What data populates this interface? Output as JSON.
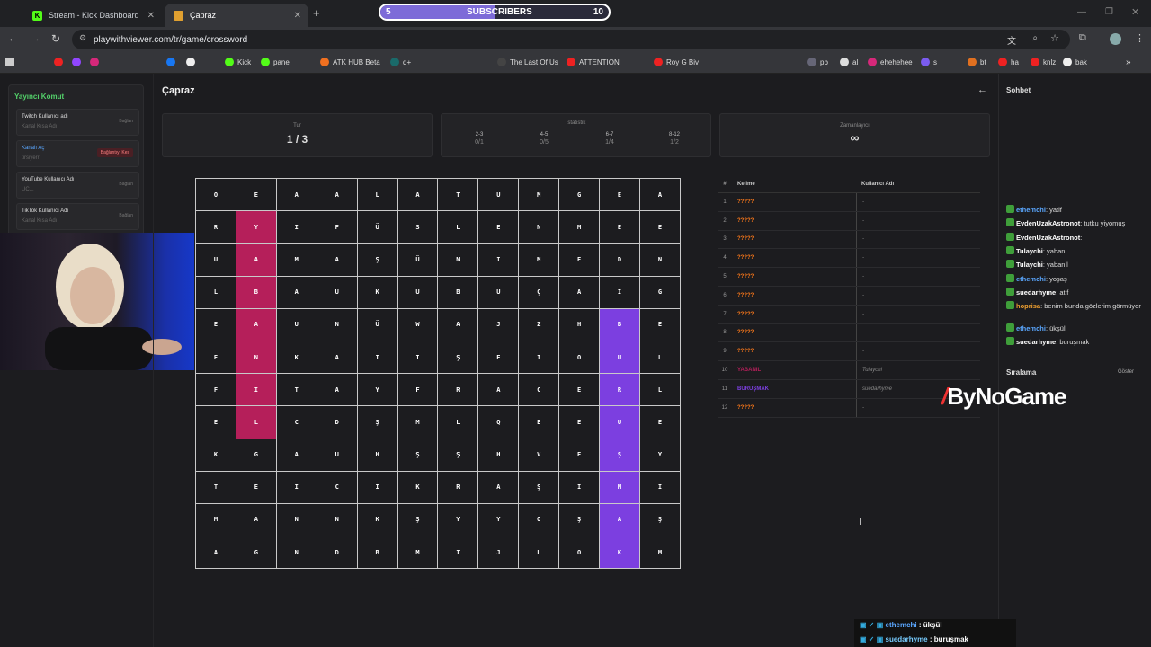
{
  "browser": {
    "tabs": [
      {
        "label": "Stream - Kick Dashboard",
        "active": false
      },
      {
        "label": "Çapraz",
        "active": true
      }
    ],
    "url": "playwithviewer.com/tr/game/crossword",
    "bookmarks": [
      "Kick",
      "panel",
      "ATK HUB Beta",
      "d+",
      "The Last Of Us",
      "ATTENTION",
      "Roy G Biv",
      "al",
      "pb",
      "ehehehee",
      "s",
      "bt",
      "ha",
      "knlz",
      "bak"
    ]
  },
  "subscribers": {
    "label": "SUBSCRIBERS",
    "current": "5",
    "goal": "10",
    "progress": 0.5
  },
  "left_panel": {
    "title": "Yayıncı Komut",
    "cards": [
      {
        "title": "Twitch Kullanıcı adı",
        "placeholder": "Kanal Kısa Adı",
        "button": "Bağlan"
      },
      {
        "title": "Kanalı Aç",
        "placeholder": "tirsiyerr",
        "button": "Bağlantıyı Kes"
      },
      {
        "title": "YouTube Kullanıcı Adı",
        "placeholder": "UC...",
        "button": "Bağlan"
      },
      {
        "title": "TikTok Kullanıcı Adı",
        "placeholder": "Kanal Kısa Adı",
        "button": "Bağlan"
      }
    ]
  },
  "main": {
    "title": "Çapraz",
    "round": {
      "label": "Tur",
      "value": "1 / 3"
    },
    "stats": {
      "label": "İstatistik",
      "ranges": [
        {
          "r": "2-3",
          "v": "0/1"
        },
        {
          "r": "4-5",
          "v": "0/5"
        },
        {
          "r": "6-7",
          "v": "1/4"
        },
        {
          "r": "8-12",
          "v": "1/2"
        }
      ]
    },
    "timer": {
      "label": "Zamanlayıcı",
      "value": "∞"
    },
    "grid": [
      [
        "O",
        "E",
        "A",
        "A",
        "L",
        "A",
        "T",
        "Ü",
        "M",
        "G",
        "E",
        "A"
      ],
      [
        "R",
        "Y",
        "I",
        "F",
        "Ü",
        "S",
        "L",
        "E",
        "N",
        "M",
        "E",
        "E"
      ],
      [
        "U",
        "A",
        "M",
        "A",
        "Ş",
        "Ü",
        "N",
        "I",
        "M",
        "E",
        "D",
        "N"
      ],
      [
        "L",
        "B",
        "A",
        "U",
        "K",
        "U",
        "B",
        "U",
        "Ç",
        "A",
        "I",
        "G"
      ],
      [
        "E",
        "A",
        "U",
        "N",
        "Ü",
        "W",
        "A",
        "J",
        "Z",
        "H",
        "B",
        "E"
      ],
      [
        "E",
        "N",
        "K",
        "A",
        "I",
        "I",
        "Ş",
        "E",
        "I",
        "O",
        "U",
        "L"
      ],
      [
        "F",
        "I",
        "T",
        "A",
        "Y",
        "F",
        "R",
        "A",
        "C",
        "E",
        "R",
        "L"
      ],
      [
        "E",
        "L",
        "C",
        "D",
        "Ş",
        "M",
        "L",
        "Q",
        "E",
        "E",
        "U",
        "E"
      ],
      [
        "K",
        "G",
        "A",
        "U",
        "H",
        "Ş",
        "Ş",
        "H",
        "V",
        "E",
        "Ş",
        "Y"
      ],
      [
        "T",
        "E",
        "I",
        "C",
        "I",
        "K",
        "R",
        "A",
        "Ş",
        "I",
        "M",
        "I"
      ],
      [
        "M",
        "A",
        "N",
        "N",
        "K",
        "Ş",
        "Y",
        "Y",
        "O",
        "Ş",
        "A",
        "Ş"
      ],
      [
        "A",
        "G",
        "N",
        "D",
        "B",
        "M",
        "I",
        "J",
        "L",
        "O",
        "K",
        "M"
      ]
    ],
    "words_table": {
      "headers": [
        "#",
        "Kelime",
        "Kullanıcı Adı"
      ],
      "rows": [
        {
          "n": "1",
          "word": "?????",
          "user": "-"
        },
        {
          "n": "2",
          "word": "?????",
          "user": "-"
        },
        {
          "n": "3",
          "word": "?????",
          "user": "-"
        },
        {
          "n": "4",
          "word": "?????",
          "user": "-"
        },
        {
          "n": "5",
          "word": "?????",
          "user": "-"
        },
        {
          "n": "6",
          "word": "?????",
          "user": "-"
        },
        {
          "n": "7",
          "word": "?????",
          "user": "-"
        },
        {
          "n": "8",
          "word": "?????",
          "user": "-"
        },
        {
          "n": "9",
          "word": "?????",
          "user": "-"
        },
        {
          "n": "10",
          "word": "YABANIL",
          "user": "Tulaychi"
        },
        {
          "n": "11",
          "word": "BURUŞMAK",
          "user": "suedarhyme"
        },
        {
          "n": "12",
          "word": "?????",
          "user": "-"
        }
      ]
    }
  },
  "right_panel": {
    "chat_title": "Sohbet",
    "messages": [
      {
        "user": "ethemchi",
        "text": "yatif",
        "color": "#5aa7ff"
      },
      {
        "user": "EvdenUzakAstronot",
        "text": "tutku yiyomuş",
        "color": "#ffffff"
      },
      {
        "user": "EvdenUzakAstronot",
        "text": "",
        "color": "#ffffff"
      },
      {
        "user": "Tulaychi",
        "text": "yabani",
        "color": "#ffffff"
      },
      {
        "user": "Tulaychi",
        "text": "yabanil",
        "color": "#ffffff"
      },
      {
        "user": "ethemchi",
        "text": "yoşaş",
        "color": "#5aa7ff"
      },
      {
        "user": "suedarhyme",
        "text": "atif",
        "color": "#ffffff"
      },
      {
        "user": "hoprisa",
        "text": "benim bunda gözlerim görmüyor",
        "color": "#f0a030"
      },
      {
        "user": "ethemchi",
        "text": "ükşül",
        "color": "#5aa7ff"
      },
      {
        "user": "suedarhyme",
        "text": "buruşmak",
        "color": "#ffffff"
      }
    ],
    "ranking_title": "Sıralama",
    "ranking_button": "Göster"
  },
  "overlay": {
    "brand": "ByNoGame",
    "messages": [
      {
        "user": "ethemchi",
        "text": "ükşül"
      },
      {
        "user": "suedarhyme",
        "text": "buruşmak"
      }
    ]
  },
  "colors": {
    "red_word": "#b51f5a",
    "purple_word": "#7c3fe0",
    "unknown_word": "#ff7a1a"
  }
}
